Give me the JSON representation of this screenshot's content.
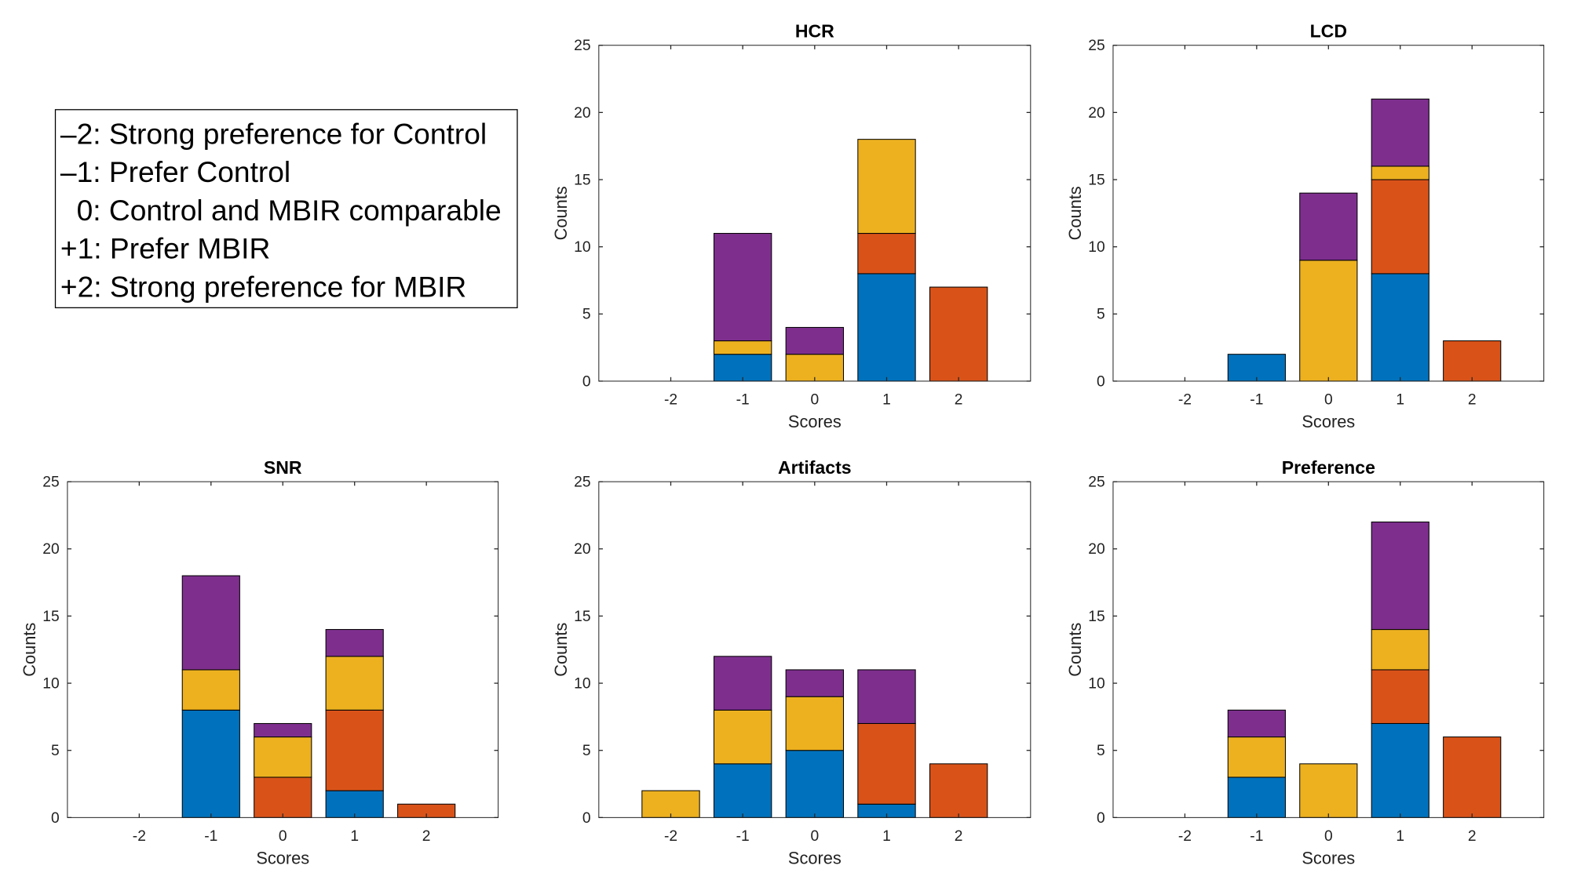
{
  "legend_box": {
    "lines": [
      "–2: Strong preference for Control",
      "–1: Prefer Control",
      "  0: Control and MBIR comparable",
      "+1: Prefer MBIR",
      "+2: Strong preference for MBIR"
    ]
  },
  "colors": {
    "blue": "#0072BD",
    "orange": "#D95319",
    "yellow": "#EDB120",
    "purple": "#7E2F8E"
  },
  "chart_data": [
    {
      "type": "bar",
      "stacked": true,
      "title": "HCR",
      "xlabel": "Scores",
      "ylabel": "Counts",
      "categories": [
        "-2",
        "-1",
        "0",
        "1",
        "2"
      ],
      "xlim": [
        -3,
        3
      ],
      "ylim": [
        0,
        25
      ],
      "yticks": [
        "0",
        "5",
        "10",
        "15",
        "20",
        "25"
      ],
      "series": [
        {
          "name": "blue",
          "values": [
            0,
            2,
            0,
            8,
            0
          ]
        },
        {
          "name": "orange",
          "values": [
            0,
            0,
            0,
            3,
            7
          ]
        },
        {
          "name": "yellow",
          "values": [
            0,
            1,
            2,
            7,
            0
          ]
        },
        {
          "name": "purple",
          "values": [
            0,
            8,
            2,
            0,
            0
          ]
        }
      ]
    },
    {
      "type": "bar",
      "stacked": true,
      "title": "LCD",
      "xlabel": "Scores",
      "ylabel": "Counts",
      "categories": [
        "-2",
        "-1",
        "0",
        "1",
        "2"
      ],
      "xlim": [
        -3,
        3
      ],
      "ylim": [
        0,
        25
      ],
      "yticks": [
        "0",
        "5",
        "10",
        "15",
        "20",
        "25"
      ],
      "series": [
        {
          "name": "blue",
          "values": [
            0,
            2,
            0,
            8,
            0
          ]
        },
        {
          "name": "orange",
          "values": [
            0,
            0,
            0,
            7,
            3
          ]
        },
        {
          "name": "yellow",
          "values": [
            0,
            0,
            9,
            1,
            0
          ]
        },
        {
          "name": "purple",
          "values": [
            0,
            0,
            5,
            5,
            0
          ]
        }
      ]
    },
    {
      "type": "bar",
      "stacked": true,
      "title": "SNR",
      "xlabel": "Scores",
      "ylabel": "Counts",
      "categories": [
        "-2",
        "-1",
        "0",
        "1",
        "2"
      ],
      "xlim": [
        -3,
        3
      ],
      "ylim": [
        0,
        25
      ],
      "yticks": [
        "0",
        "5",
        "10",
        "15",
        "20",
        "25"
      ],
      "series": [
        {
          "name": "blue",
          "values": [
            0,
            8,
            0,
            2,
            0
          ]
        },
        {
          "name": "orange",
          "values": [
            0,
            0,
            3,
            6,
            1
          ]
        },
        {
          "name": "yellow",
          "values": [
            0,
            3,
            3,
            4,
            0
          ]
        },
        {
          "name": "purple",
          "values": [
            0,
            7,
            1,
            2,
            0
          ]
        }
      ]
    },
    {
      "type": "bar",
      "stacked": true,
      "title": "Artifacts",
      "xlabel": "Scores",
      "ylabel": "Counts",
      "categories": [
        "-2",
        "-1",
        "0",
        "1",
        "2"
      ],
      "xlim": [
        -3,
        3
      ],
      "ylim": [
        0,
        25
      ],
      "yticks": [
        "0",
        "5",
        "10",
        "15",
        "20",
        "25"
      ],
      "series": [
        {
          "name": "blue",
          "values": [
            0,
            4,
            5,
            1,
            0
          ]
        },
        {
          "name": "orange",
          "values": [
            0,
            0,
            0,
            6,
            4
          ]
        },
        {
          "name": "yellow",
          "values": [
            2,
            4,
            4,
            0,
            0
          ]
        },
        {
          "name": "purple",
          "values": [
            0,
            4,
            2,
            4,
            0
          ]
        }
      ]
    },
    {
      "type": "bar",
      "stacked": true,
      "title": "Preference",
      "xlabel": "Scores",
      "ylabel": "Counts",
      "categories": [
        "-2",
        "-1",
        "0",
        "1",
        "2"
      ],
      "xlim": [
        -3,
        3
      ],
      "ylim": [
        0,
        25
      ],
      "yticks": [
        "0",
        "5",
        "10",
        "15",
        "20",
        "25"
      ],
      "series": [
        {
          "name": "blue",
          "values": [
            0,
            3,
            0,
            7,
            0
          ]
        },
        {
          "name": "orange",
          "values": [
            0,
            0,
            0,
            4,
            6
          ]
        },
        {
          "name": "yellow",
          "values": [
            0,
            3,
            4,
            3,
            0
          ]
        },
        {
          "name": "purple",
          "values": [
            0,
            2,
            0,
            8,
            0
          ]
        }
      ]
    }
  ]
}
